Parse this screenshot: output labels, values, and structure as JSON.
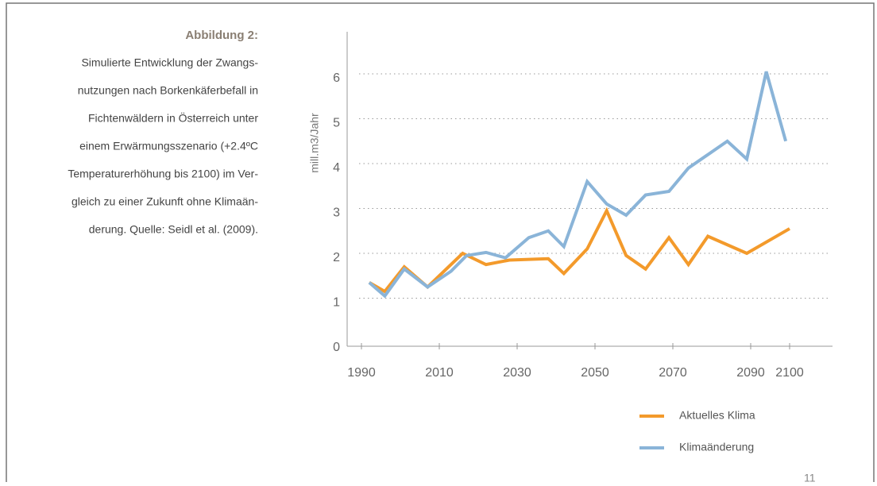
{
  "caption": {
    "title": "Abbildung 2:",
    "lines": [
      "Simulierte Entwicklung der Zwangs-",
      "nutzungen nach Borkenkäferbefall in",
      "Fichtenwäldern in Österreich unter",
      "einem Erwärmungsszenario (+2.4ºC",
      "Temperaturerhöhung bis 2100) im Ver-",
      "gleich zu einer Zukunft ohne Klimaän-",
      "derung. Quelle: Seidl et al. (2009)."
    ]
  },
  "page_number": "11",
  "chart_data": {
    "type": "line",
    "y_label": "mill.m3/Jahr",
    "xlim": [
      1986,
      2102
    ],
    "xticks": [
      1990,
      2010,
      2030,
      2050,
      2070,
      2090,
      2100
    ],
    "ylim": [
      0,
      6.6
    ],
    "yticks": [
      0,
      1,
      2,
      3,
      4,
      5,
      6
    ],
    "grid": true,
    "legend": "bottom-right",
    "series": [
      {
        "name": "Aktuelles Klima",
        "color": "#f39a2b",
        "x": [
          1992,
          1996,
          2001,
          2007,
          2016,
          2022,
          2028,
          2038,
          2042,
          2048,
          2053,
          2058,
          2063,
          2069,
          2074,
          2079,
          2089,
          2100
        ],
        "values": [
          1.35,
          1.15,
          1.7,
          1.25,
          2.0,
          1.75,
          1.85,
          1.88,
          1.55,
          2.1,
          2.95,
          1.95,
          1.65,
          2.35,
          1.75,
          2.38,
          2.0,
          2.55
        ]
      },
      {
        "name": "Klimaänderung",
        "color": "#8ab4d8",
        "x": [
          1992,
          1996,
          2001,
          2007,
          2013,
          2017,
          2022,
          2027,
          2033,
          2038,
          2042,
          2048,
          2053,
          2058,
          2063,
          2069,
          2074,
          2084,
          2089,
          2094,
          2099
        ],
        "values": [
          1.35,
          1.05,
          1.65,
          1.25,
          1.6,
          1.95,
          2.02,
          1.9,
          2.35,
          2.5,
          2.15,
          3.6,
          3.1,
          2.85,
          3.3,
          3.38,
          3.9,
          4.5,
          4.1,
          6.05,
          4.5
        ]
      }
    ]
  }
}
